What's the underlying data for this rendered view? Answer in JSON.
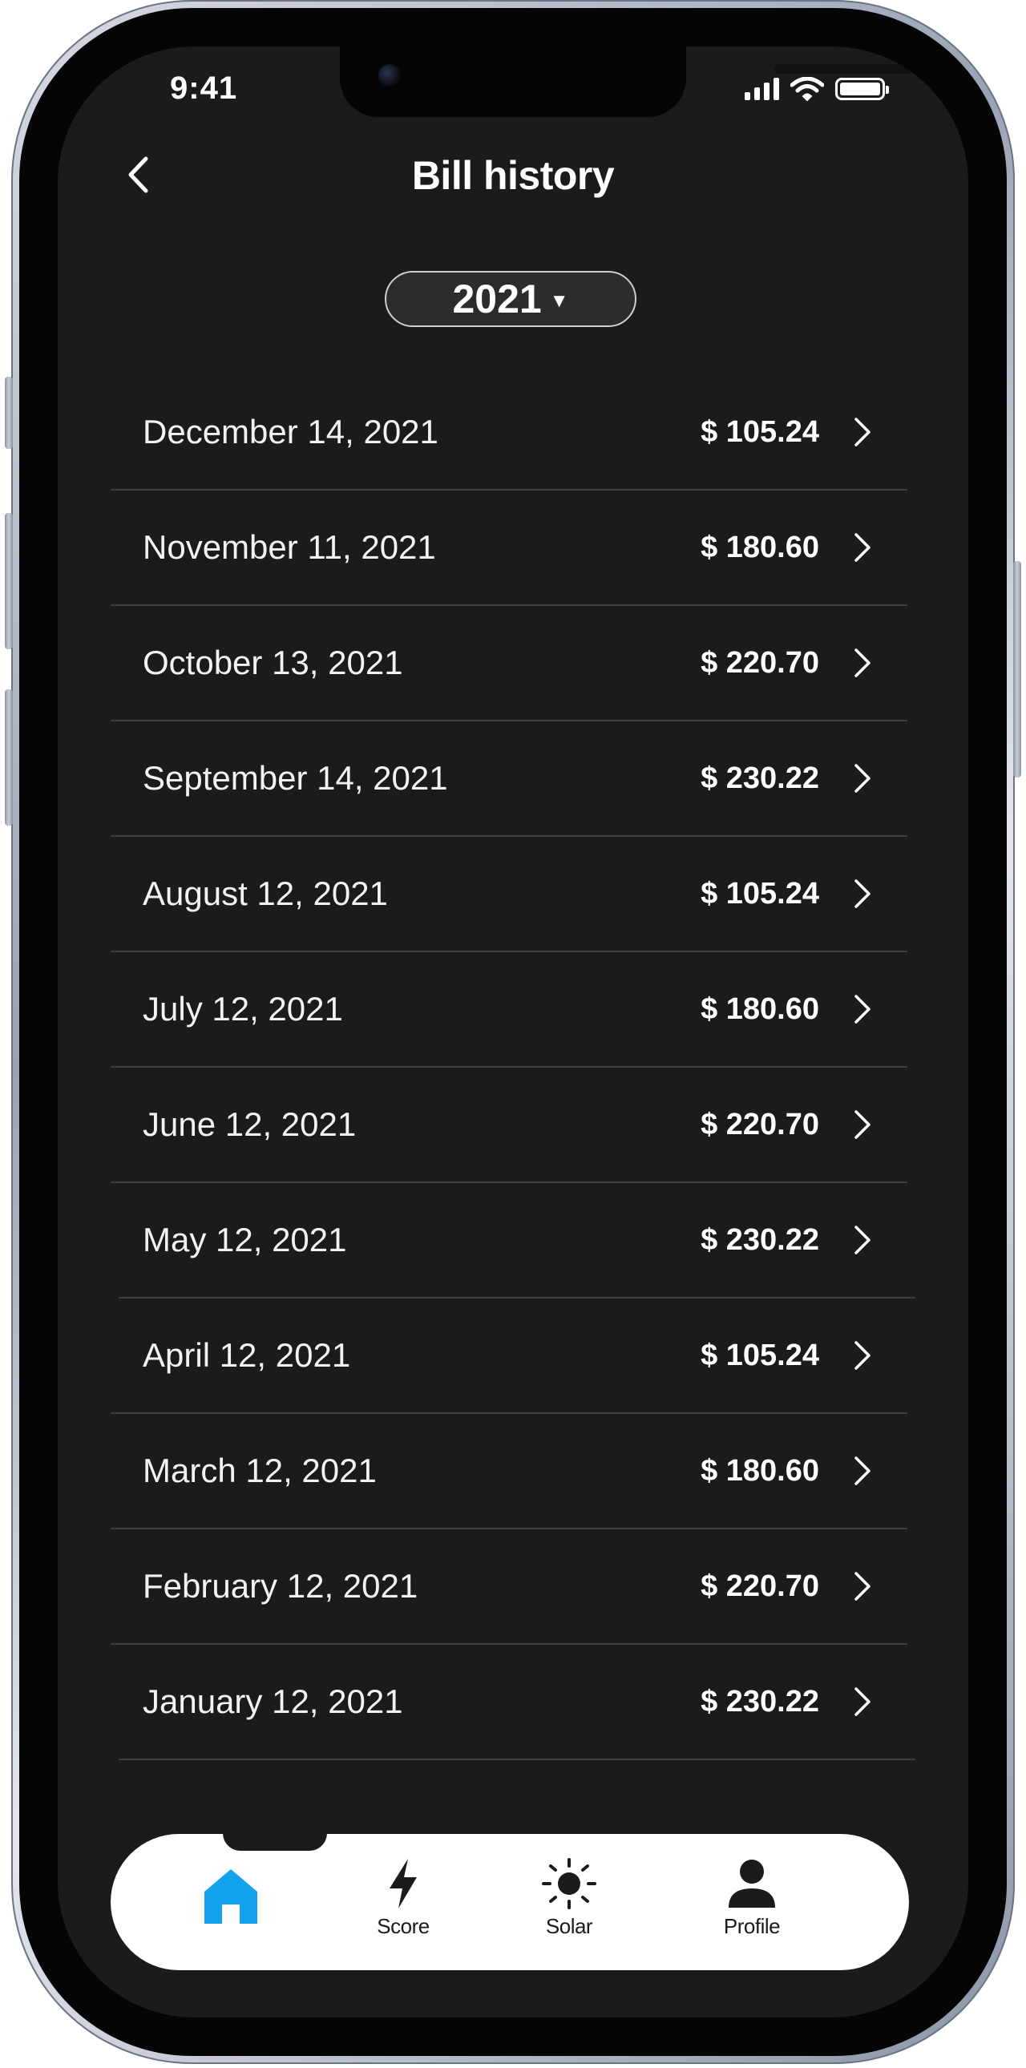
{
  "status": {
    "time": "9:41"
  },
  "header": {
    "title": "Bill history"
  },
  "year_select": {
    "value": "2021"
  },
  "bills": [
    {
      "date": "December 14, 2021",
      "amount": "$ 105.24"
    },
    {
      "date": "November 11, 2021",
      "amount": "$ 180.60"
    },
    {
      "date": "October 13, 2021",
      "amount": "$ 220.70"
    },
    {
      "date": "September 14, 2021",
      "amount": "$ 230.22"
    },
    {
      "date": "August 12, 2021",
      "amount": "$ 105.24"
    },
    {
      "date": "July 12, 2021",
      "amount": "$ 180.60"
    },
    {
      "date": "June 12, 2021",
      "amount": "$ 220.70"
    },
    {
      "date": "May 12, 2021",
      "amount": "$ 230.22"
    },
    {
      "date": "April 12, 2021",
      "amount": "$ 105.24"
    },
    {
      "date": "March 12, 2021",
      "amount": "$ 180.60"
    },
    {
      "date": "February 12, 2021",
      "amount": "$ 220.70"
    },
    {
      "date": "January 12, 2021",
      "amount": "$ 230.22"
    }
  ],
  "tab_bar": {
    "tabs": [
      {
        "icon": "home-icon",
        "label": "",
        "active": true
      },
      {
        "icon": "lightning-icon",
        "label": "Score",
        "active": false
      },
      {
        "icon": "sun-icon",
        "label": "Solar",
        "active": false
      },
      {
        "icon": "person-icon",
        "label": "Profile",
        "active": false
      }
    ]
  },
  "colors": {
    "background": "#1b1b1b",
    "accent": "#12a3ef",
    "text": "#ffffff",
    "tab_bar": "#ffffff"
  }
}
